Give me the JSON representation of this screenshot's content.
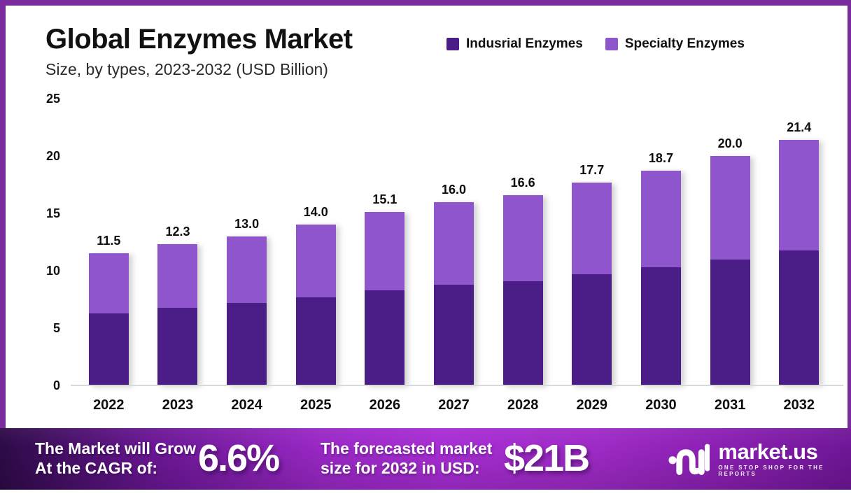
{
  "header": {
    "title": "Global Enzymes Market",
    "subtitle": "Size, by types, 2023-2032 (USD Billion)"
  },
  "legend": {
    "items": [
      {
        "label": "Indusrial Enzymes",
        "color": "#4a1d87"
      },
      {
        "label": "Specialty Enzymes",
        "color": "#8e55cc"
      }
    ]
  },
  "chart_data": {
    "type": "bar",
    "stacked": true,
    "title": "Global Enzymes Market",
    "subtitle": "Size, by types, 2023-2032 (USD Billion)",
    "unit": "USD Billion",
    "categories": [
      "2022",
      "2023",
      "2024",
      "2025",
      "2026",
      "2027",
      "2028",
      "2029",
      "2030",
      "2031",
      "2032"
    ],
    "series": [
      {
        "name": "Indusrial Enzymes",
        "color": "#4a1d87",
        "values": [
          6.3,
          6.8,
          7.2,
          7.7,
          8.3,
          8.8,
          9.1,
          9.7,
          10.3,
          11.0,
          11.8
        ]
      },
      {
        "name": "Specialty Enzymes",
        "color": "#8e55cc",
        "values": [
          5.2,
          5.5,
          5.8,
          6.3,
          6.8,
          7.2,
          7.5,
          8.0,
          8.4,
          9.0,
          9.6
        ]
      }
    ],
    "totals": [
      11.5,
      12.3,
      13.0,
      14.0,
      15.1,
      16.0,
      16.6,
      17.7,
      18.7,
      20.0,
      21.4
    ],
    "total_labels": [
      "11.5",
      "12.3",
      "13.0",
      "14.0",
      "15.1",
      "16.0",
      "16.6",
      "17.7",
      "18.7",
      "20.0",
      "21.4"
    ],
    "ylim": [
      0,
      25
    ],
    "yticks": [
      0,
      5,
      10,
      15,
      20,
      25
    ],
    "grid": false,
    "legend_position": "top-right"
  },
  "banner": {
    "grow_line1": "The Market will Grow",
    "grow_line2": "At the CAGR of:",
    "cagr_value": "6.6%",
    "forecast_line1": "The forecasted market",
    "forecast_line2": "size for 2032 in USD:",
    "forecast_value": "$21B",
    "logo": {
      "name": "market.us",
      "tagline": "ONE STOP SHOP FOR THE REPORTS"
    }
  },
  "colors": {
    "frame": "#7a2b9d",
    "industrial": "#4a1d87",
    "specialty": "#8e55cc",
    "axis_line": "#d9d9d9",
    "banner_dark": "#2d0a47",
    "banner_bright": "#a72dd3"
  }
}
